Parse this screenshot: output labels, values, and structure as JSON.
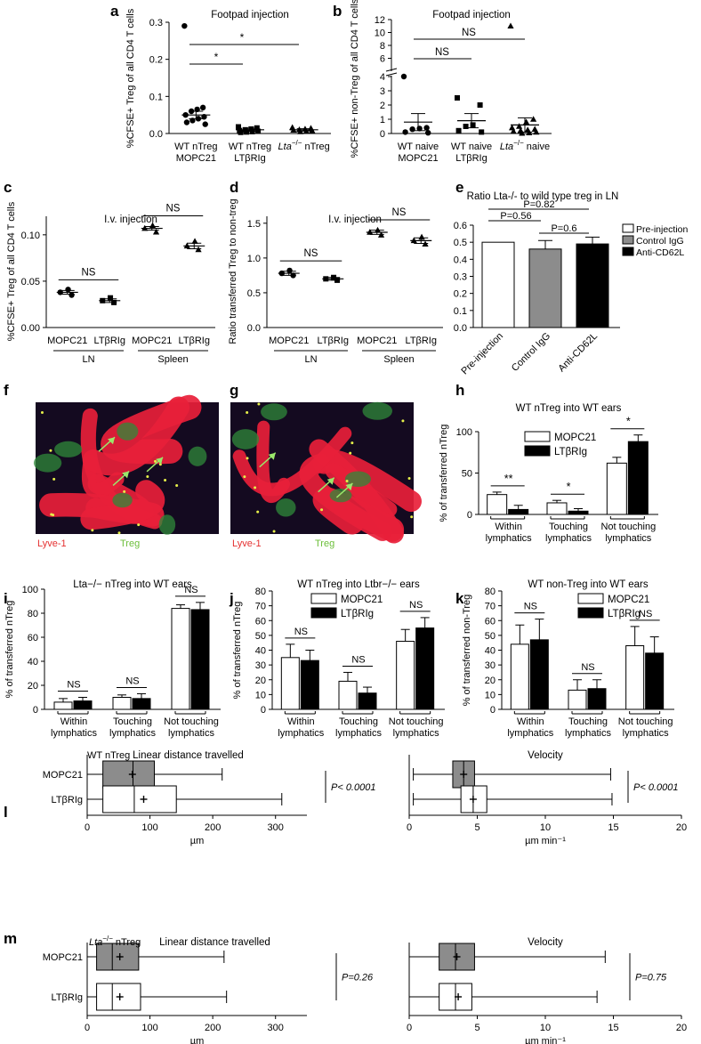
{
  "figure": {
    "panel_letters": [
      "a",
      "b",
      "c",
      "d",
      "e",
      "f",
      "g",
      "h",
      "i",
      "j",
      "k",
      "l",
      "m"
    ],
    "images": {
      "f": {
        "labels": [
          "Lyve-1",
          "Treg"
        ]
      },
      "g": {
        "labels": [
          "Lyve-1",
          "Treg"
        ]
      }
    },
    "colors": {
      "lyve1_label": "#e53030",
      "treg_label": "#6cbf3a",
      "gray_bar": "#8c8c8c",
      "lymphatic_red": "#e8203a",
      "tissue_dark": "#140a20"
    }
  },
  "chart_data": [
    {
      "id": "a",
      "type": "scatter",
      "title": "Footpad injection",
      "ylabel": "%CFSE+ Treg of all CD4 T cells",
      "ylim": [
        0,
        0.3
      ],
      "yticks": [
        "0.0",
        "0.1",
        "0.2",
        "0.3"
      ],
      "categories": [
        "WT nTreg\nMOPC21",
        "WT nTreg\nLTβRIg",
        "Lta−/− nTreg"
      ],
      "series": [
        {
          "values": [
            0.29,
            0.07,
            0.065,
            0.06,
            0.05,
            0.045,
            0.04,
            0.035,
            0.03,
            0.025
          ],
          "mean": 0.05,
          "sem": 0.01
        },
        {
          "values": [
            0.018,
            0.015,
            0.012,
            0.01,
            0.008,
            0.006,
            0.005,
            0.004,
            0.003
          ],
          "mean": 0.01,
          "sem": 0.004
        },
        {
          "values": [
            0.016,
            0.014,
            0.012,
            0.01,
            0.009,
            0.008,
            0.006,
            0.005
          ],
          "mean": 0.01,
          "sem": 0.003
        }
      ],
      "annotations": [
        "*",
        "*"
      ]
    },
    {
      "id": "b",
      "type": "scatter",
      "title": "Footpad injection",
      "ylabel": "%CFSE+ non-Treg of all CD4 T cells",
      "yticks": [
        "0",
        "1",
        "2",
        "3",
        "4",
        "6",
        "8",
        "10",
        "12"
      ],
      "categories": [
        "WT naive\nMOPC21",
        "WT naive\nLTβRIg",
        "Lta−/− naive"
      ],
      "series": [
        {
          "values": [
            4,
            0.4,
            0.35,
            0.3,
            0.1,
            0.05
          ],
          "mean": 0.8,
          "sem": 0.6
        },
        {
          "values": [
            2.5,
            2.0,
            0.6,
            0.5,
            0.2,
            0.1
          ],
          "mean": 0.9,
          "sem": 0.5
        },
        {
          "values": [
            11,
            1.0,
            0.8,
            0.5,
            0.4,
            0.3,
            0.25,
            0.2,
            0.15,
            0.1,
            0.05,
            0.02
          ],
          "mean": 0.6,
          "sem": 0.5
        }
      ],
      "annotations": [
        "NS",
        "NS"
      ]
    },
    {
      "id": "c",
      "type": "scatter",
      "title": "I.v. injection",
      "ylabel": "%CFSE+ Treg of all CD4 T cells",
      "ylim": [
        0,
        0.12
      ],
      "yticks": [
        "0.00",
        "0.05",
        "0.10"
      ],
      "categories": [
        "MOPC21",
        "LTβRIg",
        "MOPC21",
        "LTβRIg"
      ],
      "groups": [
        "LN",
        "Spleen"
      ],
      "series": [
        {
          "values": [
            0.038,
            0.035,
            0.041
          ],
          "mean": 0.038,
          "sem": 0.002
        },
        {
          "values": [
            0.029,
            0.027,
            0.032
          ],
          "mean": 0.029,
          "sem": 0.002
        },
        {
          "values": [
            0.107,
            0.103,
            0.11
          ],
          "mean": 0.107,
          "sem": 0.002
        },
        {
          "values": [
            0.088,
            0.084,
            0.093
          ],
          "mean": 0.088,
          "sem": 0.003
        }
      ],
      "annotations": [
        "NS",
        "NS"
      ]
    },
    {
      "id": "d",
      "type": "scatter",
      "title": "I.v. injection",
      "ylabel": "Ratio transferred Treg to non-treg",
      "ylim": [
        0,
        1.6
      ],
      "yticks": [
        "0.0",
        "0.5",
        "1.0",
        "1.5"
      ],
      "categories": [
        "MOPC21",
        "LTβRIg",
        "MOPC21",
        "LTβRIg"
      ],
      "groups": [
        "LN",
        "Spleen"
      ],
      "series": [
        {
          "values": [
            0.78,
            0.75,
            0.82
          ],
          "mean": 0.78,
          "sem": 0.03
        },
        {
          "values": [
            0.7,
            0.68,
            0.72
          ],
          "mean": 0.7,
          "sem": 0.02
        },
        {
          "values": [
            1.37,
            1.33,
            1.4
          ],
          "mean": 1.37,
          "sem": 0.03
        },
        {
          "values": [
            1.25,
            1.2,
            1.3
          ],
          "mean": 1.25,
          "sem": 0.04
        }
      ],
      "annotations": [
        "NS",
        "NS"
      ]
    },
    {
      "id": "e",
      "type": "bar",
      "title": "Ratio Lta-/- to wild type treg in LN",
      "ylim": [
        0,
        0.6
      ],
      "yticks": [
        "0.0",
        "0.1",
        "0.2",
        "0.3",
        "0.4",
        "0.5",
        "0.6"
      ],
      "categories": [
        "Pre-injection",
        "Control IgG",
        "Anti-CD62L"
      ],
      "values": [
        0.5,
        0.46,
        0.49
      ],
      "sem": [
        0,
        0.05,
        0.04
      ],
      "legend": [
        "Pre-injection",
        "Control IgG",
        "Anti-CD62L"
      ],
      "annotations": [
        "P=0.82",
        "P=0.56",
        "P=0.6"
      ]
    },
    {
      "id": "h",
      "type": "bar",
      "title": "WT nTreg into WT ears",
      "ylabel": "% of transferred nTreg",
      "ylim": [
        0,
        100
      ],
      "yticks": [
        "0",
        "50",
        "100"
      ],
      "categories": [
        "Within\nlymphatics",
        "Touching\nlymphatics",
        "Not touching\nlymphatics"
      ],
      "series": [
        {
          "name": "MOPC21",
          "values": [
            24,
            14,
            62
          ],
          "sem": [
            3,
            3,
            7
          ]
        },
        {
          "name": "LTβRIg",
          "values": [
            6,
            4,
            88
          ],
          "sem": [
            5,
            3,
            8
          ]
        }
      ],
      "annotations": [
        "**",
        "*",
        "*"
      ]
    },
    {
      "id": "i",
      "type": "bar",
      "title": "Lta−/− nTreg into WT ears",
      "ylabel": "% of transferred nTreg",
      "ylim": [
        0,
        100
      ],
      "yticks": [
        "0",
        "20",
        "40",
        "60",
        "80",
        "100"
      ],
      "categories": [
        "Within\nlymphatics",
        "Touching\nlymphatics",
        "Not touching\nlymphatics"
      ],
      "series": [
        {
          "values": [
            6,
            10,
            84
          ],
          "sem": [
            3,
            2,
            3
          ]
        },
        {
          "values": [
            7,
            9,
            83
          ],
          "sem": [
            3,
            4,
            6
          ]
        }
      ],
      "annotations": [
        "NS",
        "NS",
        "NS"
      ]
    },
    {
      "id": "j",
      "type": "bar",
      "title": "WT nTreg into Ltbr−/− ears",
      "ylabel": "% of transferred nTreg",
      "ylim": [
        0,
        80
      ],
      "yticks": [
        "0",
        "10",
        "20",
        "30",
        "40",
        "50",
        "60",
        "70",
        "80"
      ],
      "categories": [
        "Within\nlymphatics",
        "Touching\nlymphatics",
        "Not touching\nlymphatics"
      ],
      "series": [
        {
          "name": "MOPC21",
          "values": [
            35,
            19,
            46
          ],
          "sem": [
            9,
            6,
            8
          ]
        },
        {
          "name": "LTβRIg",
          "values": [
            33,
            11,
            55
          ],
          "sem": [
            7,
            4,
            7
          ]
        }
      ],
      "annotations": [
        "NS",
        "NS",
        "NS"
      ]
    },
    {
      "id": "k",
      "type": "bar",
      "title": "WT non-Treg into WT ears",
      "ylabel": "% of transferred non-Treg",
      "ylim": [
        0,
        80
      ],
      "yticks": [
        "0",
        "10",
        "20",
        "30",
        "40",
        "50",
        "60",
        "70",
        "80"
      ],
      "categories": [
        "Within\nlymphatics",
        "Touching\nlymphatics",
        "Not touching\nlymphatics"
      ],
      "series": [
        {
          "name": "MOPC21",
          "values": [
            44,
            13,
            43
          ],
          "sem": [
            13,
            7,
            13
          ]
        },
        {
          "name": "LTβRIg",
          "values": [
            47,
            14,
            38
          ],
          "sem": [
            14,
            6,
            11
          ]
        }
      ],
      "annotations": [
        "NS",
        "NS",
        "NS"
      ]
    },
    {
      "id": "l1",
      "type": "boxplot",
      "corner": "WT nTreg",
      "title": "Linear distance travelled",
      "xlabel": "µm",
      "xlim": [
        0,
        350
      ],
      "xticks": [
        "0",
        "100",
        "200",
        "300"
      ],
      "categories": [
        "MOPC21",
        "LTβRIg"
      ],
      "boxes": [
        {
          "min": 0,
          "q1": 25,
          "median": 73,
          "q3": 107,
          "max": 215,
          "mean": 72
        },
        {
          "min": 0,
          "q1": 25,
          "median": 75,
          "q3": 142,
          "max": 310,
          "mean": 90
        }
      ],
      "annotations": [
        "P< 0.0001"
      ]
    },
    {
      "id": "l2",
      "type": "boxplot",
      "title": "Velocity",
      "xlabel": "µm min⁻¹",
      "xlim": [
        0,
        20
      ],
      "xticks": [
        "0",
        "5",
        "10",
        "15",
        "20"
      ],
      "categories": [
        "MOPC21",
        "LTβRIg"
      ],
      "boxes": [
        {
          "min": 0.3,
          "q1": 3.2,
          "median": 4.0,
          "q3": 4.8,
          "max": 14.8,
          "mean": 4.0
        },
        {
          "min": 0.3,
          "q1": 3.8,
          "median": 4.7,
          "q3": 5.7,
          "max": 14.9,
          "mean": 4.7
        }
      ],
      "annotations": [
        "P< 0.0001"
      ]
    },
    {
      "id": "m1",
      "type": "boxplot",
      "corner": "Lta−/− nTreg",
      "title": "Linear distance travelled",
      "xlabel": "µm",
      "xlim": [
        0,
        350
      ],
      "xticks": [
        "0",
        "100",
        "200",
        "300"
      ],
      "categories": [
        "MOPC21",
        "LTβRIg"
      ],
      "boxes": [
        {
          "min": 0,
          "q1": 15,
          "median": 40,
          "q3": 82,
          "max": 218,
          "mean": 52
        },
        {
          "min": 0,
          "q1": 15,
          "median": 40,
          "q3": 85,
          "max": 222,
          "mean": 52
        }
      ],
      "annotations": [
        "P=0.26"
      ]
    },
    {
      "id": "m2",
      "type": "boxplot",
      "title": "Velocity",
      "xlabel": "µm min⁻¹",
      "xlim": [
        0,
        20
      ],
      "xticks": [
        "0",
        "5",
        "10",
        "15",
        "20"
      ],
      "categories": [
        "MOPC21",
        "LTβRIg"
      ],
      "boxes": [
        {
          "min": 0,
          "q1": 2.2,
          "median": 3.4,
          "q3": 4.8,
          "max": 14.4,
          "mean": 3.5
        },
        {
          "min": 0,
          "q1": 2.2,
          "median": 3.4,
          "q3": 4.6,
          "max": 13.8,
          "mean": 3.6
        }
      ],
      "annotations": [
        "P=0.75"
      ]
    }
  ]
}
